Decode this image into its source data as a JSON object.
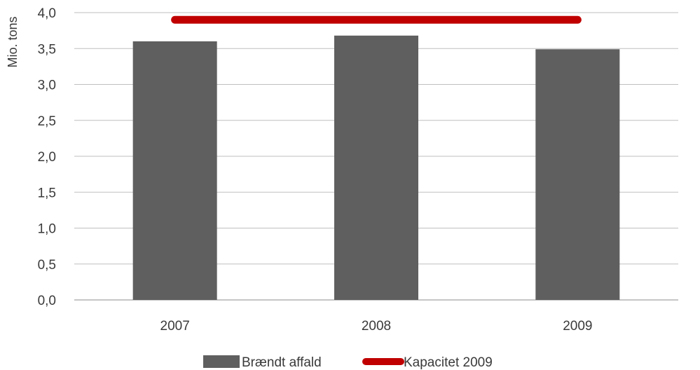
{
  "chart_data": {
    "type": "bar",
    "categories": [
      "2007",
      "2008",
      "2009"
    ],
    "series": [
      {
        "name": "Brændt affald",
        "kind": "bar",
        "color": "#5f5f5f",
        "values": [
          3.6,
          3.68,
          3.49
        ]
      },
      {
        "name": "Kapacitet 2009",
        "kind": "line",
        "color": "#c00000",
        "values": [
          3.9,
          3.9,
          3.9
        ]
      }
    ],
    "ylabel": "Mio. tons",
    "ylim": [
      0,
      4.0
    ],
    "yticks": [
      "0,0",
      "0,5",
      "1,0",
      "1,5",
      "2,0",
      "2,5",
      "3,0",
      "3,5",
      "4,0"
    ],
    "grid": true,
    "legend_position": "bottom"
  }
}
